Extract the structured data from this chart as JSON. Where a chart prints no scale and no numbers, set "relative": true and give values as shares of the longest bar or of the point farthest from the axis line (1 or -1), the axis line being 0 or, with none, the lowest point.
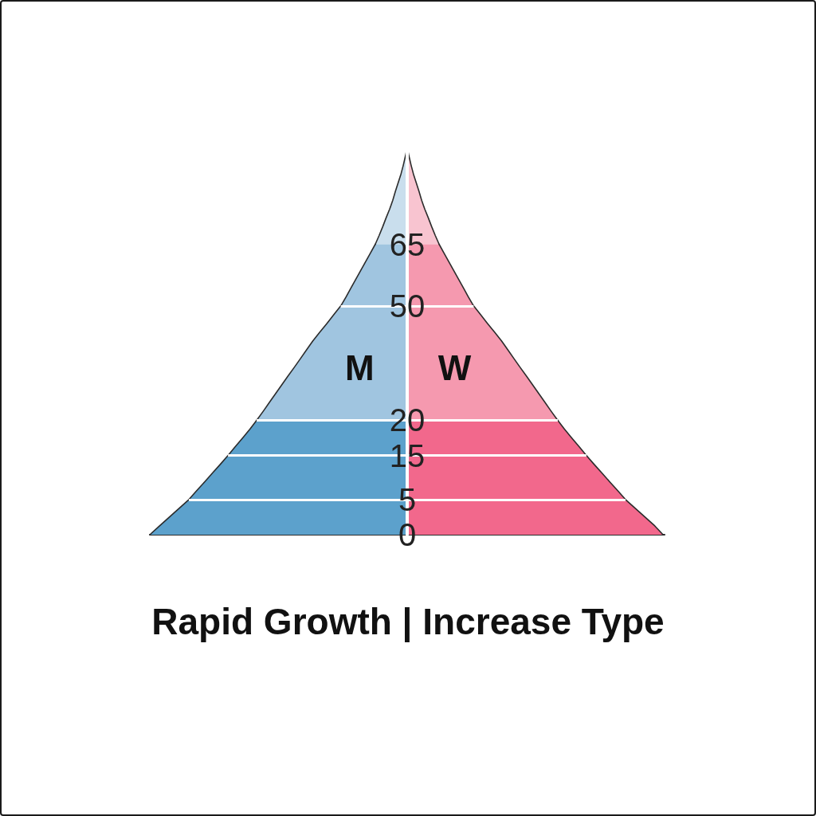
{
  "chart_data": {
    "type": "area",
    "orientation": "horizontal",
    "relative": true,
    "title": "Rapid Growth | Increase Type",
    "categories": [
      null,
      null,
      null,
      null,
      null,
      null,
      null,
      null,
      null,
      null,
      null,
      "65",
      null,
      null,
      null,
      null,
      null,
      null,
      "50",
      null,
      null,
      null,
      null,
      null,
      null,
      null,
      null,
      null,
      null,
      null,
      null,
      "20",
      null,
      null,
      null,
      "15",
      null,
      null,
      null,
      null,
      "5",
      null,
      null,
      null,
      "0"
    ],
    "series": [
      {
        "color": "#c9deed",
        "values": [
          0,
          -0.007,
          -0.015,
          -0.024,
          -0.035,
          -0.046,
          -0.056,
          -0.068,
          -0.082,
          -0.095,
          -0.109,
          -0.124,
          null,
          null,
          null,
          null,
          null,
          null,
          null,
          null,
          null,
          null,
          null,
          null,
          null,
          null,
          null,
          null,
          null,
          null,
          null,
          null,
          null,
          null,
          null,
          null,
          null,
          null,
          null,
          null,
          null,
          null,
          null,
          null,
          null
        ]
      },
      {
        "name": "M",
        "color": "#a0c5e0",
        "values": [
          null,
          null,
          null,
          null,
          null,
          null,
          null,
          null,
          null,
          null,
          null,
          -0.124,
          -0.143,
          -0.162,
          -0.181,
          -0.2,
          -0.219,
          -0.238,
          -0.258,
          -0.285,
          -0.312,
          -0.34,
          -0.367,
          -0.391,
          -0.415,
          -0.439,
          -0.464,
          -0.488,
          -0.512,
          -0.536,
          -0.56,
          -0.585,
          null,
          null,
          null,
          null,
          null,
          null,
          null,
          null,
          null,
          null,
          null,
          null,
          null
        ]
      },
      {
        "color": "#5ca1cc",
        "values": [
          null,
          null,
          null,
          null,
          null,
          null,
          null,
          null,
          null,
          null,
          null,
          null,
          null,
          null,
          null,
          null,
          null,
          null,
          null,
          null,
          null,
          null,
          null,
          null,
          null,
          null,
          null,
          null,
          null,
          null,
          null,
          -0.585,
          -0.611,
          -0.639,
          -0.668,
          -0.696,
          -0.726,
          -0.757,
          -0.787,
          -0.818,
          -0.848,
          -0.886,
          -0.924,
          -0.962,
          -1.0
        ]
      },
      {
        "color": "#f8c4d0",
        "values": [
          0,
          0.007,
          0.015,
          0.024,
          0.035,
          0.046,
          0.056,
          0.068,
          0.082,
          0.095,
          0.109,
          0.124,
          null,
          null,
          null,
          null,
          null,
          null,
          null,
          null,
          null,
          null,
          null,
          null,
          null,
          null,
          null,
          null,
          null,
          null,
          null,
          null,
          null,
          null,
          null,
          null,
          null,
          null,
          null,
          null,
          null,
          null,
          null,
          null,
          null
        ]
      },
      {
        "name": "W",
        "color": "#f599af",
        "values": [
          null,
          null,
          null,
          null,
          null,
          null,
          null,
          null,
          null,
          null,
          null,
          0.124,
          0.143,
          0.162,
          0.181,
          0.2,
          0.219,
          0.238,
          0.258,
          0.285,
          0.312,
          0.34,
          0.367,
          0.391,
          0.415,
          0.439,
          0.464,
          0.488,
          0.512,
          0.536,
          0.56,
          0.585,
          null,
          null,
          null,
          null,
          null,
          null,
          null,
          null,
          null,
          null,
          null,
          null,
          null
        ]
      },
      {
        "color": "#f2688c",
        "values": [
          null,
          null,
          null,
          null,
          null,
          null,
          null,
          null,
          null,
          null,
          null,
          null,
          null,
          null,
          null,
          null,
          null,
          null,
          null,
          null,
          null,
          null,
          null,
          null,
          null,
          null,
          null,
          null,
          null,
          null,
          null,
          0.585,
          0.611,
          0.639,
          0.668,
          0.696,
          0.726,
          0.757,
          0.787,
          0.818,
          0.848,
          0.886,
          0.924,
          0.962,
          0.994
        ]
      }
    ],
    "ref_lines": [
      {
        "axis": "y",
        "value": "50",
        "color": "#ffffff"
      },
      {
        "axis": "y",
        "value": "20",
        "color": "#ffffff"
      },
      {
        "axis": "y",
        "value": "15",
        "color": "#ffffff"
      },
      {
        "axis": "y",
        "value": "5",
        "color": "#ffffff"
      }
    ]
  }
}
